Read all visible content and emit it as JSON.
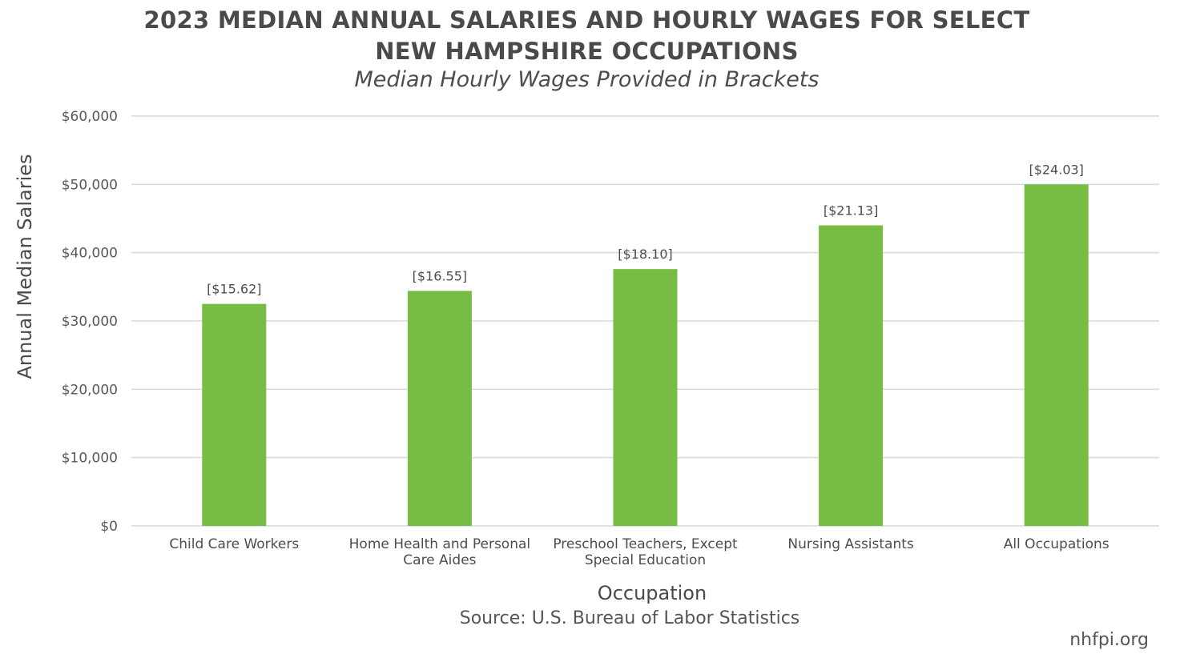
{
  "chart_data": {
    "type": "bar",
    "title_lines": [
      "2023 MEDIAN ANNUAL SALARIES AND HOURLY WAGES FOR SELECT",
      "NEW HAMPSHIRE OCCUPATIONS"
    ],
    "subtitle": "Median Hourly Wages Provided in Brackets",
    "xlabel": "Occupation",
    "ylabel": "Annual Median Salaries",
    "categories": [
      [
        "Child Care Workers"
      ],
      [
        "Home Health and Personal",
        "Care Aides"
      ],
      [
        "Preschool Teachers, Except",
        "Special Education"
      ],
      [
        "Nursing Assistants"
      ],
      [
        "All Occupations"
      ]
    ],
    "values": [
      32500,
      34400,
      37600,
      44000,
      50000
    ],
    "data_labels": [
      "[$15.62]",
      "[$16.55]",
      "[$18.10]",
      "[$21.13]",
      "[$24.03]"
    ],
    "ylim": [
      0,
      60000
    ],
    "yticks": [
      0,
      10000,
      20000,
      30000,
      40000,
      50000,
      60000
    ],
    "ytick_labels": [
      "$0",
      "$10,000",
      "$20,000",
      "$30,000",
      "$40,000",
      "$50,000",
      "$60,000"
    ],
    "grid": true,
    "bar_color": "#77bc43",
    "grid_color": "#d9d9d9"
  },
  "footer": {
    "source": "Source: U.S. Bureau of Labor Statistics",
    "site": "nhfpi.org"
  }
}
